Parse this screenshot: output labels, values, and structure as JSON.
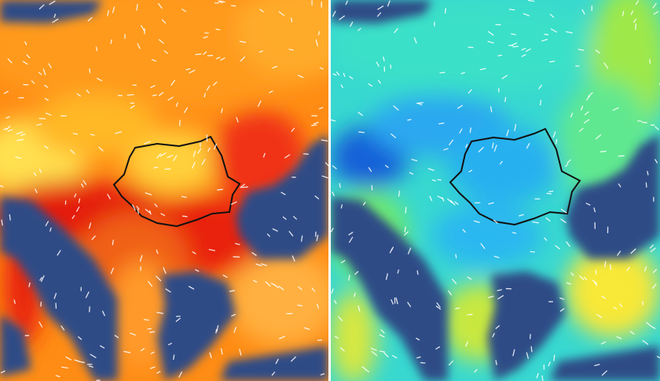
{
  "panels": [
    {
      "id": "left",
      "colors": {
        "sea": "#2e4c86",
        "hot": "#e41a0e",
        "warm": "#ff7a10",
        "mild": "#ffb020",
        "light": "#ffe04a"
      }
    },
    {
      "id": "right",
      "colors": {
        "sea": "#2e4c86",
        "cold": "#1560d8",
        "cool": "#2fc8f0",
        "mid": "#40e8a0",
        "green": "#8ce84a",
        "yellow": "#f8e838",
        "orange": "#f5a020"
      }
    }
  ],
  "divider_color": "#ffffff",
  "border_color": "#111111",
  "wind_color": "#ffffff"
}
